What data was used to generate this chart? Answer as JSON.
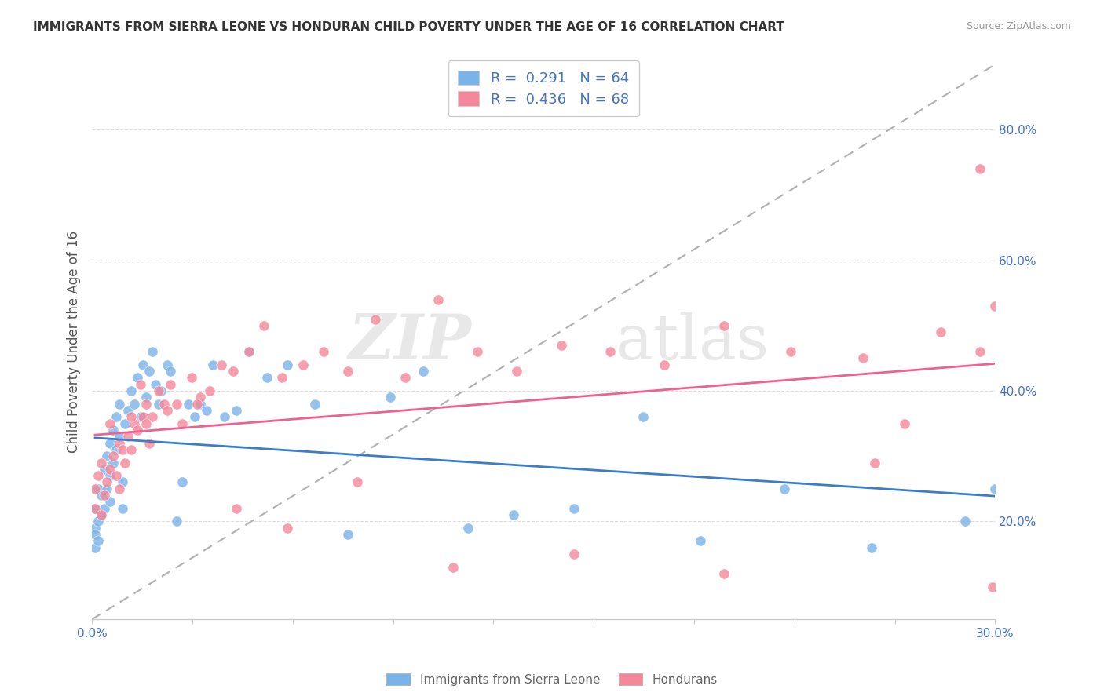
{
  "title": "IMMIGRANTS FROM SIERRA LEONE VS HONDURAN CHILD POVERTY UNDER THE AGE OF 16 CORRELATION CHART",
  "source": "Source: ZipAtlas.com",
  "ylabel": "Child Poverty Under the Age of 16",
  "legend_label1": "Immigrants from Sierra Leone",
  "legend_label2": "Hondurans",
  "sierra_leone_color": "#7ab3e8",
  "honduran_color": "#f4879a",
  "trendline_sierra_color": "#3d7cc9",
  "trendline_honduran_color": "#f06090",
  "dashed_line_color": "#b0b0b0",
  "watermark_zip": "ZIP",
  "watermark_atlas": "atlas",
  "background_color": "#ffffff",
  "sierra_leone_R": 0.291,
  "sierra_leone_N": 64,
  "honduran_R": 0.436,
  "honduran_N": 68,
  "xmin": 0.0,
  "xmax": 0.3,
  "ymin": 0.05,
  "ymax": 0.9,
  "sierra_leone_x": [
    0.001,
    0.001,
    0.001,
    0.001,
    0.002,
    0.002,
    0.002,
    0.003,
    0.003,
    0.004,
    0.004,
    0.005,
    0.005,
    0.006,
    0.006,
    0.006,
    0.007,
    0.007,
    0.008,
    0.008,
    0.009,
    0.009,
    0.01,
    0.01,
    0.011,
    0.012,
    0.013,
    0.014,
    0.015,
    0.016,
    0.017,
    0.018,
    0.019,
    0.02,
    0.021,
    0.022,
    0.023,
    0.025,
    0.026,
    0.028,
    0.03,
    0.032,
    0.034,
    0.036,
    0.038,
    0.04,
    0.044,
    0.048,
    0.052,
    0.058,
    0.065,
    0.074,
    0.085,
    0.099,
    0.11,
    0.125,
    0.14,
    0.16,
    0.183,
    0.202,
    0.23,
    0.259,
    0.29,
    0.3
  ],
  "sierra_leone_y": [
    0.22,
    0.19,
    0.18,
    0.16,
    0.25,
    0.2,
    0.17,
    0.24,
    0.21,
    0.28,
    0.22,
    0.3,
    0.25,
    0.32,
    0.27,
    0.23,
    0.34,
    0.29,
    0.36,
    0.31,
    0.38,
    0.33,
    0.26,
    0.22,
    0.35,
    0.37,
    0.4,
    0.38,
    0.42,
    0.36,
    0.44,
    0.39,
    0.43,
    0.46,
    0.41,
    0.38,
    0.4,
    0.44,
    0.43,
    0.2,
    0.26,
    0.38,
    0.36,
    0.38,
    0.37,
    0.44,
    0.36,
    0.37,
    0.46,
    0.42,
    0.44,
    0.38,
    0.18,
    0.39,
    0.43,
    0.19,
    0.21,
    0.22,
    0.36,
    0.17,
    0.25,
    0.16,
    0.2,
    0.25
  ],
  "honduran_x": [
    0.001,
    0.002,
    0.003,
    0.004,
    0.005,
    0.006,
    0.007,
    0.008,
    0.009,
    0.01,
    0.011,
    0.012,
    0.013,
    0.014,
    0.015,
    0.016,
    0.017,
    0.018,
    0.019,
    0.02,
    0.022,
    0.024,
    0.026,
    0.028,
    0.03,
    0.033,
    0.036,
    0.039,
    0.043,
    0.047,
    0.052,
    0.057,
    0.063,
    0.07,
    0.077,
    0.085,
    0.094,
    0.104,
    0.115,
    0.128,
    0.141,
    0.156,
    0.172,
    0.19,
    0.21,
    0.232,
    0.256,
    0.282,
    0.295,
    0.3,
    0.001,
    0.003,
    0.006,
    0.009,
    0.013,
    0.018,
    0.025,
    0.035,
    0.048,
    0.065,
    0.088,
    0.12,
    0.16,
    0.21,
    0.26,
    0.299,
    0.295,
    0.27
  ],
  "honduran_y": [
    0.25,
    0.27,
    0.29,
    0.24,
    0.26,
    0.28,
    0.3,
    0.27,
    0.32,
    0.31,
    0.29,
    0.33,
    0.31,
    0.35,
    0.34,
    0.41,
    0.36,
    0.38,
    0.32,
    0.36,
    0.4,
    0.38,
    0.41,
    0.38,
    0.35,
    0.42,
    0.39,
    0.4,
    0.44,
    0.43,
    0.46,
    0.5,
    0.42,
    0.44,
    0.46,
    0.43,
    0.51,
    0.42,
    0.54,
    0.46,
    0.43,
    0.47,
    0.46,
    0.44,
    0.5,
    0.46,
    0.45,
    0.49,
    0.74,
    0.53,
    0.22,
    0.21,
    0.35,
    0.25,
    0.36,
    0.35,
    0.37,
    0.38,
    0.22,
    0.19,
    0.26,
    0.13,
    0.15,
    0.12,
    0.29,
    0.1,
    0.46,
    0.35
  ]
}
